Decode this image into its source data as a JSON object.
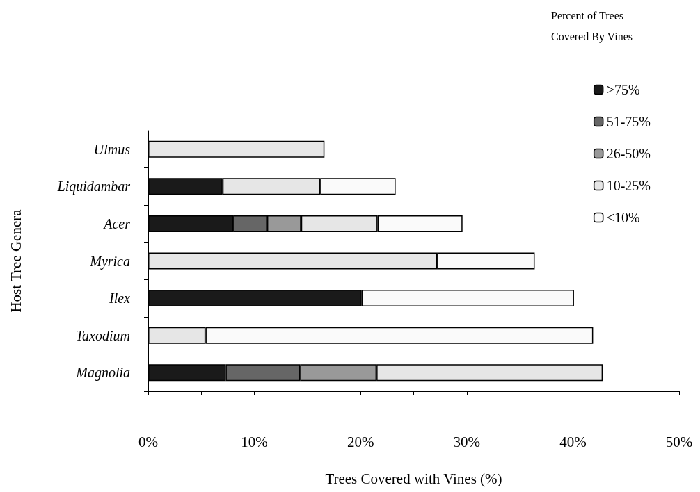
{
  "chart_data": {
    "type": "bar",
    "orientation": "horizontal",
    "stacked": true,
    "xlabel": "Trees Covered with Vines (%)",
    "ylabel": "Host Tree Genera",
    "legend_title": "Percent of Trees Covered By Vines",
    "categories": [
      "Ulmus",
      "Liquidambar",
      "Acer",
      "Myrica",
      "Ilex",
      "Taxodium",
      "Magnolia"
    ],
    "series": [
      {
        "name": ">75%",
        "color": "#1a1a1a",
        "values": [
          null,
          7.0,
          8.0,
          null,
          20.1,
          null,
          7.3
        ]
      },
      {
        "name": "51-75%",
        "color": "#666666",
        "values": [
          null,
          null,
          3.2,
          null,
          null,
          null,
          7.0
        ]
      },
      {
        "name": "26-50%",
        "color": "#999999",
        "values": [
          null,
          null,
          3.2,
          null,
          null,
          null,
          7.2
        ]
      },
      {
        "name": "10-25%",
        "color": "#e6e6e6",
        "values": [
          16.6,
          9.2,
          7.2,
          27.2,
          null,
          5.4,
          21.3
        ]
      },
      {
        "name": "<10%",
        "color": "#fafafa",
        "values": [
          null,
          7.1,
          8.0,
          9.2,
          20.0,
          36.5,
          null
        ]
      }
    ],
    "xlim": [
      0,
      50
    ],
    "xticks": [
      {
        "value": 0,
        "label": "0%"
      },
      {
        "value": 5,
        "label": null
      },
      {
        "value": 10,
        "label": "10%"
      },
      {
        "value": 15,
        "label": null
      },
      {
        "value": 20,
        "label": "20%"
      },
      {
        "value": 25,
        "label": null
      },
      {
        "value": 30,
        "label": "30%"
      },
      {
        "value": 35,
        "label": null
      },
      {
        "value": 40,
        "label": "40%"
      },
      {
        "value": 45,
        "label": null
      },
      {
        "value": 50,
        "label": "50%"
      }
    ],
    "grid": false,
    "legend": "top right"
  }
}
